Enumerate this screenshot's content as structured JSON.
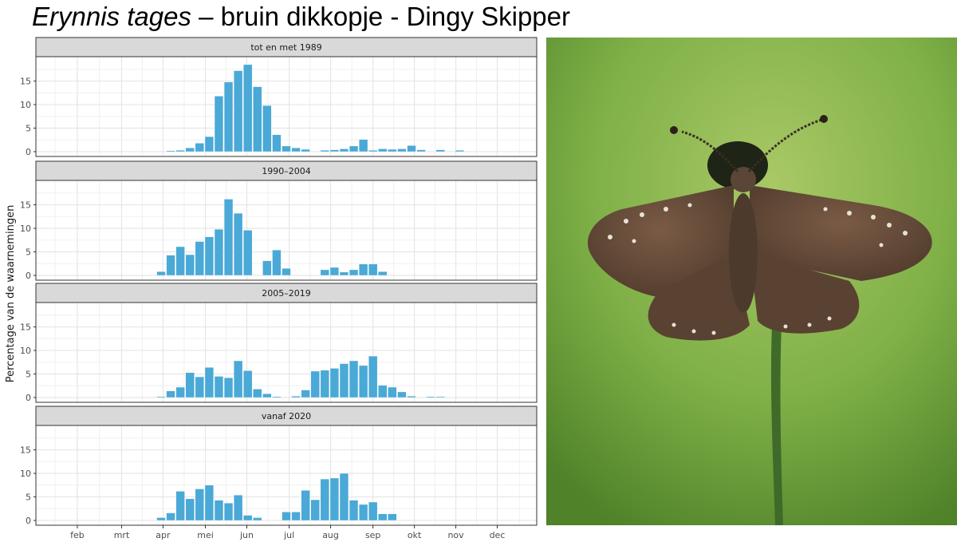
{
  "title": {
    "species": "Erynnis tages",
    "rest": " – bruin dikkopje - Dingy Skipper"
  },
  "chart_data": {
    "type": "bar",
    "ylabel": "Percentage van de waarnemingen",
    "xlabel": "",
    "x_ticks": [
      "feb",
      "mrt",
      "apr",
      "mei",
      "jun",
      "jul",
      "aug",
      "sep",
      "okt",
      "nov",
      "dec"
    ],
    "x_tick_weeks": [
      4.3,
      8.9,
      13.2,
      17.6,
      21.9,
      26.3,
      30.6,
      35.0,
      39.3,
      43.6,
      47.9
    ],
    "x_range_weeks": [
      0,
      52
    ],
    "ylim": [
      0,
      19.5
    ],
    "y_ticks": [
      0,
      5,
      10,
      15
    ],
    "grid": true,
    "bar_color": "#4aa9d6",
    "panels": [
      {
        "label": "tot en met 1989",
        "values": [
          [
            14,
            0.2
          ],
          [
            15,
            0.3
          ],
          [
            16,
            0.8
          ],
          [
            17,
            1.8
          ],
          [
            18,
            3.2
          ],
          [
            19,
            11.8
          ],
          [
            20,
            14.8
          ],
          [
            21,
            17.2
          ],
          [
            22,
            18.5
          ],
          [
            23,
            13.8
          ],
          [
            24,
            9.8
          ],
          [
            25,
            3.6
          ],
          [
            26,
            1.2
          ],
          [
            27,
            0.8
          ],
          [
            28,
            0.5
          ],
          [
            30,
            0.3
          ],
          [
            31,
            0.4
          ],
          [
            32,
            0.6
          ],
          [
            33,
            1.2
          ],
          [
            34,
            2.6
          ],
          [
            35,
            0.3
          ],
          [
            36,
            0.6
          ],
          [
            37,
            0.5
          ],
          [
            38,
            0.6
          ],
          [
            39,
            1.3
          ],
          [
            40,
            0.4
          ],
          [
            42,
            0.4
          ],
          [
            44,
            0.3
          ]
        ]
      },
      {
        "label": "1990–2004",
        "values": [
          [
            13,
            0.8
          ],
          [
            14,
            4.3
          ],
          [
            15,
            6.1
          ],
          [
            16,
            4.4
          ],
          [
            17,
            7.2
          ],
          [
            18,
            8.2
          ],
          [
            19,
            9.8
          ],
          [
            20,
            16.2
          ],
          [
            21,
            13.2
          ],
          [
            22,
            9.6
          ],
          [
            24,
            3.1
          ],
          [
            25,
            5.4
          ],
          [
            26,
            1.5
          ],
          [
            30,
            1.2
          ],
          [
            31,
            1.7
          ],
          [
            32,
            0.7
          ],
          [
            33,
            1.2
          ],
          [
            34,
            2.4
          ],
          [
            35,
            2.4
          ],
          [
            36,
            0.8
          ]
        ]
      },
      {
        "label": "2005–2019",
        "values": [
          [
            13,
            0.2
          ],
          [
            14,
            1.4
          ],
          [
            15,
            2.2
          ],
          [
            16,
            5.3
          ],
          [
            17,
            4.4
          ],
          [
            18,
            6.4
          ],
          [
            19,
            4.5
          ],
          [
            20,
            4.2
          ],
          [
            21,
            7.8
          ],
          [
            22,
            5.7
          ],
          [
            23,
            1.8
          ],
          [
            24,
            0.8
          ],
          [
            25,
            0.2
          ],
          [
            27,
            0.3
          ],
          [
            28,
            1.6
          ],
          [
            29,
            5.6
          ],
          [
            30,
            5.8
          ],
          [
            31,
            6.2
          ],
          [
            32,
            7.2
          ],
          [
            33,
            7.8
          ],
          [
            34,
            6.8
          ],
          [
            35,
            8.8
          ],
          [
            36,
            2.6
          ],
          [
            37,
            2.2
          ],
          [
            38,
            1.2
          ],
          [
            39,
            0.3
          ],
          [
            41,
            0.2
          ],
          [
            42,
            0.2
          ]
        ]
      },
      {
        "label": "vanaf 2020",
        "values": [
          [
            13,
            0.6
          ],
          [
            14,
            1.6
          ],
          [
            15,
            6.2
          ],
          [
            16,
            4.6
          ],
          [
            17,
            6.7
          ],
          [
            18,
            7.5
          ],
          [
            19,
            4.3
          ],
          [
            20,
            3.7
          ],
          [
            21,
            5.4
          ],
          [
            22,
            1.1
          ],
          [
            23,
            0.6
          ],
          [
            26,
            1.8
          ],
          [
            27,
            1.8
          ],
          [
            28,
            6.4
          ],
          [
            29,
            4.4
          ],
          [
            30,
            8.8
          ],
          [
            31,
            9.0
          ],
          [
            32,
            10.0
          ],
          [
            33,
            4.3
          ],
          [
            34,
            3.4
          ],
          [
            35,
            3.9
          ],
          [
            36,
            1.4
          ],
          [
            37,
            1.4
          ]
        ]
      }
    ]
  },
  "photo": {
    "subject": "dingy-skipper-butterfly",
    "colors": {
      "bg_light": "#9cc25c",
      "bg_dark": "#5f8f32",
      "wing": "#6b4f3c",
      "wing_dark": "#4c362a",
      "stem": "#3f6a2a"
    }
  }
}
